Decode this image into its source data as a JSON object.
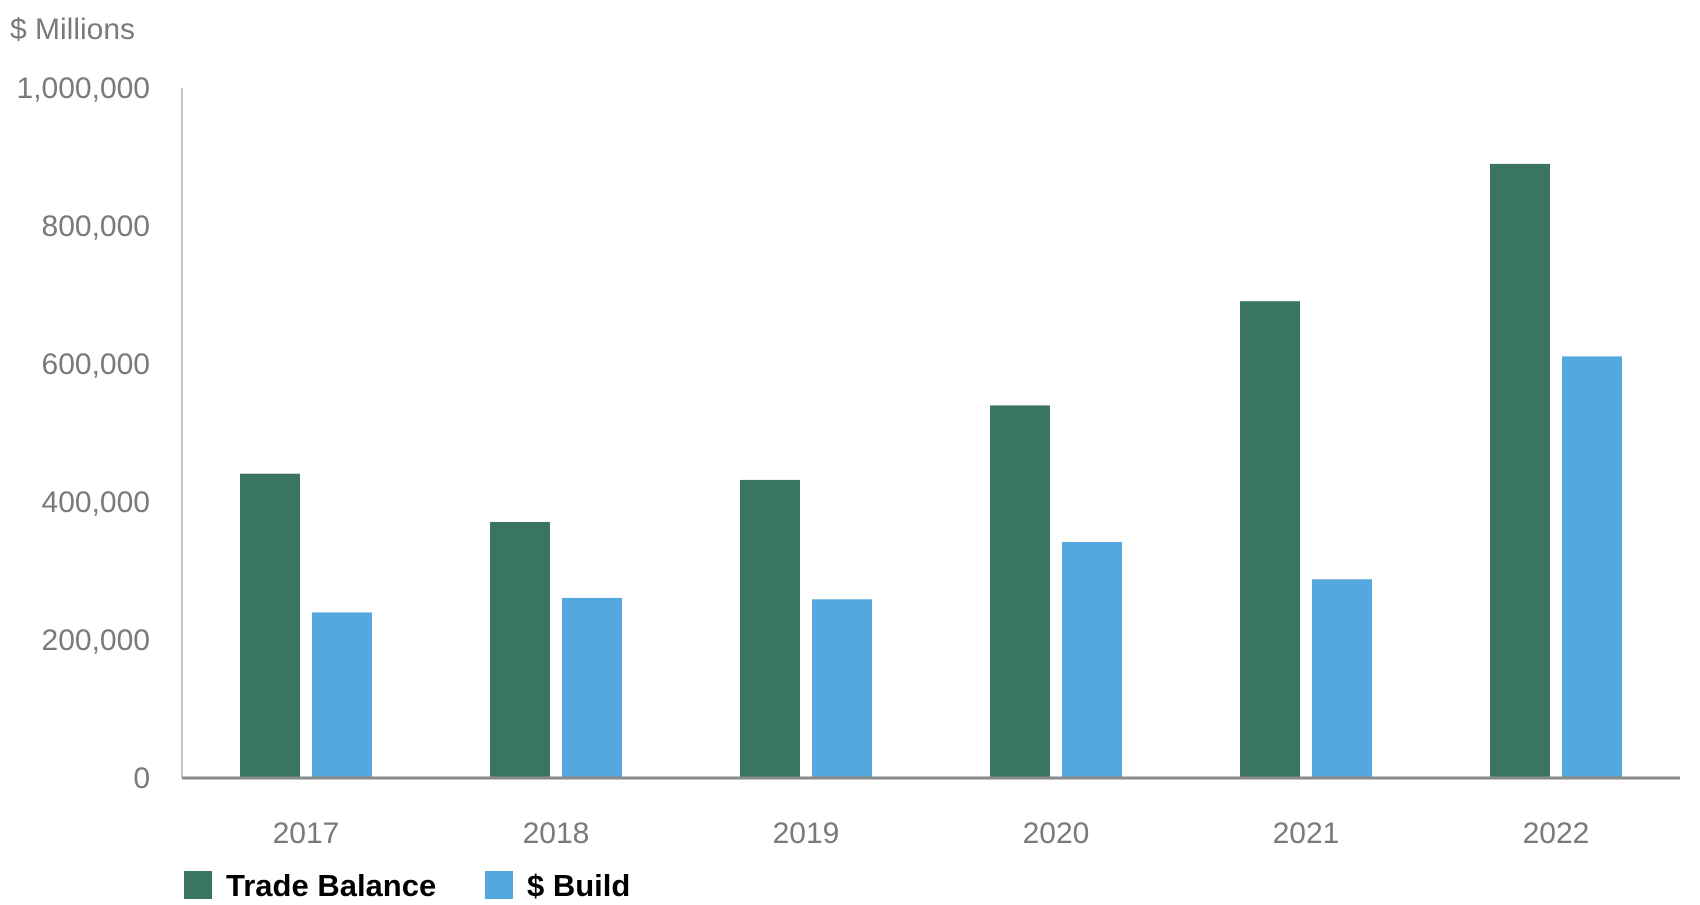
{
  "chart_data": {
    "type": "bar",
    "title": "",
    "xlabel": "",
    "ylabel": "$ Millions",
    "categories": [
      "2017",
      "2018",
      "2019",
      "2020",
      "2021",
      "2022"
    ],
    "series": [
      {
        "name": "Trade Balance",
        "color": "#3a7562",
        "values": [
          441000,
          371000,
          432000,
          540000,
          691000,
          890000
        ]
      },
      {
        "name": "$ Build",
        "color": "#55a8dd",
        "values": [
          240000,
          261000,
          259000,
          342000,
          288000,
          611000
        ]
      }
    ],
    "ylim": [
      0,
      1000000
    ],
    "yticks": [
      0,
      200000,
      400000,
      600000,
      800000,
      1000000
    ],
    "ytick_labels": [
      "0",
      "200,000",
      "400,000",
      "600,000",
      "800,000",
      "1,000,000"
    ],
    "grid": false,
    "legend_position": "bottom-left"
  }
}
